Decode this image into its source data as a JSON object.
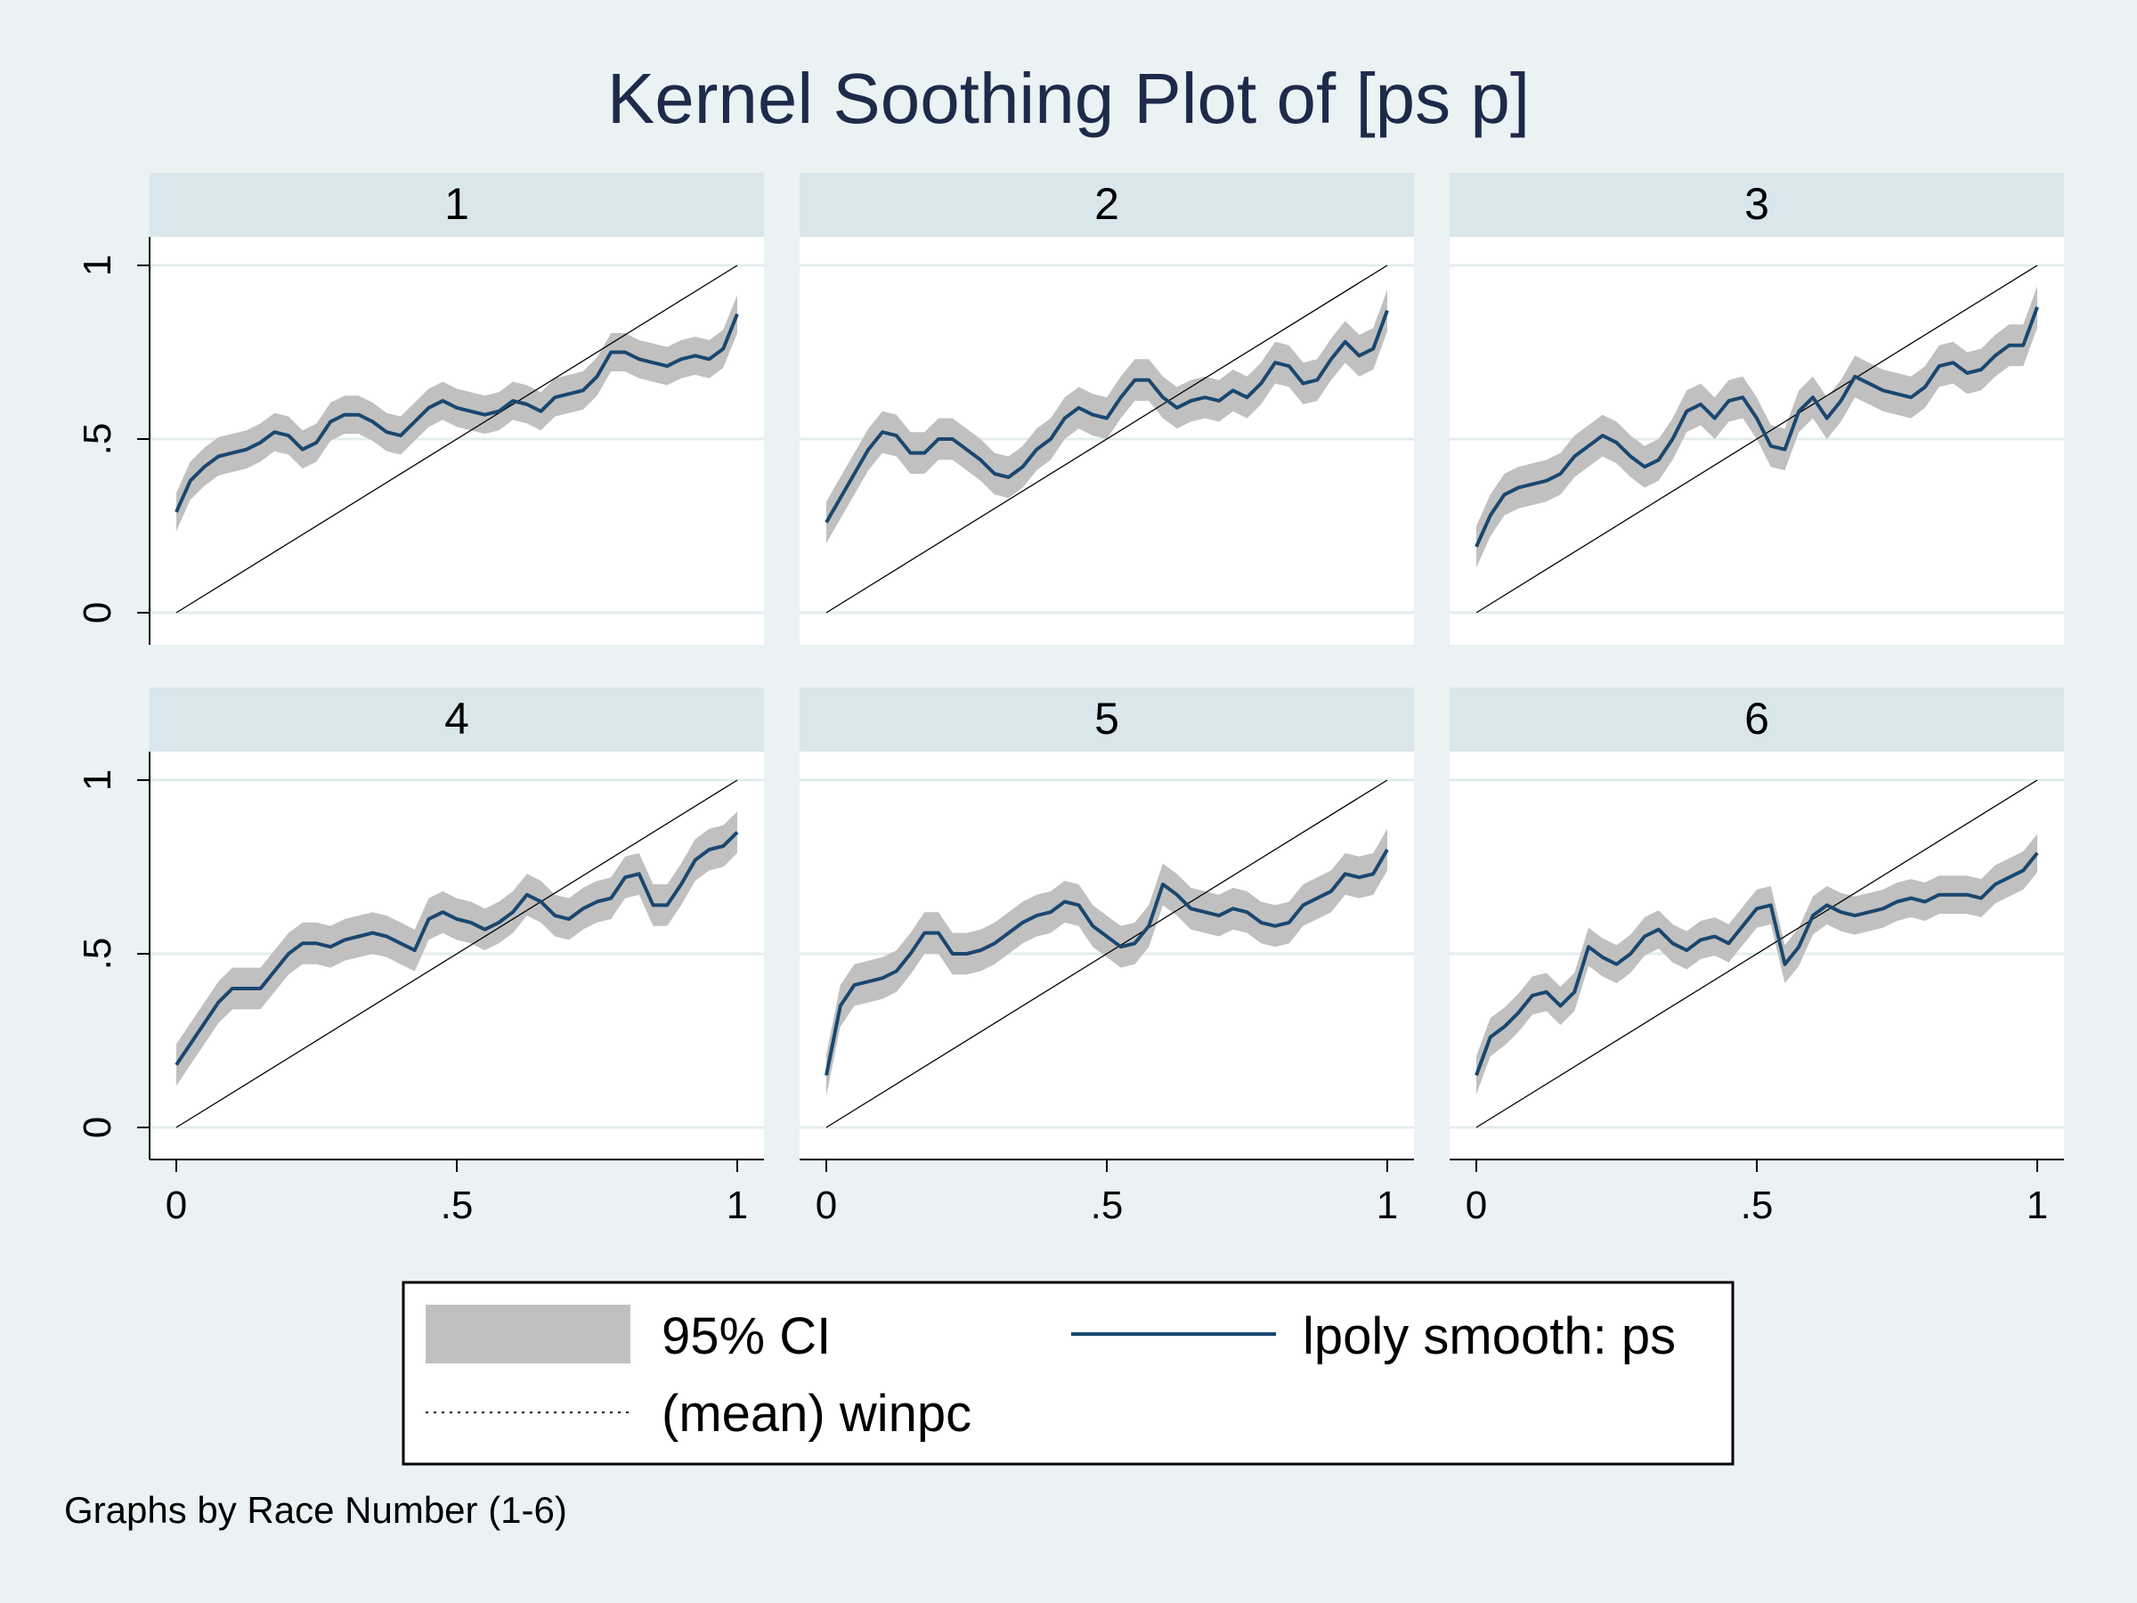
{
  "colors": {
    "background": "#eaf2f3",
    "panel_header": "#d9e6eb",
    "ci_band": "#c0c0c0",
    "smooth_line": "#1a476f",
    "reference_line": "#000000",
    "grid": "#e4ecee",
    "title": "#1e2a4a"
  },
  "chart_data": {
    "type": "line",
    "title": "Kernel Soothing Plot of [ps p]",
    "note": "Graphs by Race Number (1-6)",
    "xlim": [
      0,
      1
    ],
    "ylim": [
      0,
      1
    ],
    "x_ticks": [
      0,
      0.5,
      1
    ],
    "x_tick_labels": [
      "0",
      ".5",
      "1"
    ],
    "y_ticks": [
      0,
      0.5,
      1
    ],
    "y_tick_labels": [
      "0",
      ".5",
      "1"
    ],
    "grid": true,
    "legend": {
      "position": "bottom",
      "entries": [
        {
          "label": "95% CI",
          "type": "band"
        },
        {
          "label": "lpoly smooth: ps",
          "type": "line"
        },
        {
          "label": "(mean) winpc",
          "type": "reference"
        }
      ]
    },
    "x": [
      0,
      0.025,
      0.05,
      0.075,
      0.1,
      0.125,
      0.15,
      0.175,
      0.2,
      0.225,
      0.25,
      0.275,
      0.3,
      0.325,
      0.35,
      0.375,
      0.4,
      0.425,
      0.45,
      0.475,
      0.5,
      0.525,
      0.55,
      0.575,
      0.6,
      0.625,
      0.65,
      0.675,
      0.7,
      0.725,
      0.75,
      0.775,
      0.8,
      0.825,
      0.85,
      0.875,
      0.9,
      0.925,
      0.95,
      0.975,
      1
    ],
    "panels": [
      {
        "label": "1",
        "smooth": [
          0.29,
          0.38,
          0.42,
          0.45,
          0.46,
          0.47,
          0.49,
          0.52,
          0.51,
          0.47,
          0.49,
          0.55,
          0.57,
          0.57,
          0.55,
          0.52,
          0.51,
          0.55,
          0.59,
          0.61,
          0.59,
          0.58,
          0.57,
          0.58,
          0.61,
          0.6,
          0.58,
          0.62,
          0.63,
          0.64,
          0.68,
          0.75,
          0.75,
          0.73,
          0.72,
          0.71,
          0.73,
          0.74,
          0.73,
          0.76,
          0.86
        ],
        "ci_width": 0.055
      },
      {
        "label": "2",
        "smooth": [
          0.26,
          0.33,
          0.4,
          0.47,
          0.52,
          0.51,
          0.46,
          0.46,
          0.5,
          0.5,
          0.47,
          0.44,
          0.4,
          0.39,
          0.42,
          0.47,
          0.5,
          0.56,
          0.59,
          0.57,
          0.56,
          0.62,
          0.67,
          0.67,
          0.62,
          0.59,
          0.61,
          0.62,
          0.61,
          0.64,
          0.62,
          0.66,
          0.72,
          0.71,
          0.66,
          0.67,
          0.73,
          0.78,
          0.74,
          0.76,
          0.87
        ],
        "ci_width": 0.06
      },
      {
        "label": "3",
        "smooth": [
          0.19,
          0.28,
          0.34,
          0.36,
          0.37,
          0.38,
          0.4,
          0.45,
          0.48,
          0.51,
          0.49,
          0.45,
          0.42,
          0.44,
          0.5,
          0.58,
          0.6,
          0.56,
          0.61,
          0.62,
          0.56,
          0.48,
          0.47,
          0.58,
          0.62,
          0.56,
          0.61,
          0.68,
          0.66,
          0.64,
          0.63,
          0.62,
          0.65,
          0.71,
          0.72,
          0.69,
          0.7,
          0.74,
          0.77,
          0.77,
          0.88
        ],
        "ci_width": 0.06
      },
      {
        "label": "4",
        "smooth": [
          0.18,
          0.24,
          0.3,
          0.36,
          0.4,
          0.4,
          0.4,
          0.45,
          0.5,
          0.53,
          0.53,
          0.52,
          0.54,
          0.55,
          0.56,
          0.55,
          0.53,
          0.51,
          0.6,
          0.62,
          0.6,
          0.59,
          0.57,
          0.59,
          0.62,
          0.67,
          0.65,
          0.61,
          0.6,
          0.63,
          0.65,
          0.66,
          0.72,
          0.73,
          0.64,
          0.64,
          0.7,
          0.77,
          0.8,
          0.81,
          0.85
        ],
        "ci_width": 0.06
      },
      {
        "label": "5",
        "smooth": [
          0.15,
          0.35,
          0.41,
          0.42,
          0.43,
          0.45,
          0.5,
          0.56,
          0.56,
          0.5,
          0.5,
          0.51,
          0.53,
          0.56,
          0.59,
          0.61,
          0.62,
          0.65,
          0.64,
          0.58,
          0.55,
          0.52,
          0.53,
          0.58,
          0.7,
          0.67,
          0.63,
          0.62,
          0.61,
          0.63,
          0.62,
          0.59,
          0.58,
          0.59,
          0.64,
          0.66,
          0.68,
          0.73,
          0.72,
          0.73,
          0.8
        ],
        "ci_width": 0.06
      },
      {
        "label": "6",
        "smooth": [
          0.15,
          0.26,
          0.29,
          0.33,
          0.38,
          0.39,
          0.35,
          0.39,
          0.52,
          0.49,
          0.47,
          0.5,
          0.55,
          0.57,
          0.53,
          0.51,
          0.54,
          0.55,
          0.53,
          0.58,
          0.63,
          0.64,
          0.47,
          0.52,
          0.61,
          0.64,
          0.62,
          0.61,
          0.62,
          0.63,
          0.65,
          0.66,
          0.65,
          0.67,
          0.67,
          0.67,
          0.66,
          0.7,
          0.72,
          0.74,
          0.79
        ],
        "ci_width": 0.055
      }
    ]
  }
}
